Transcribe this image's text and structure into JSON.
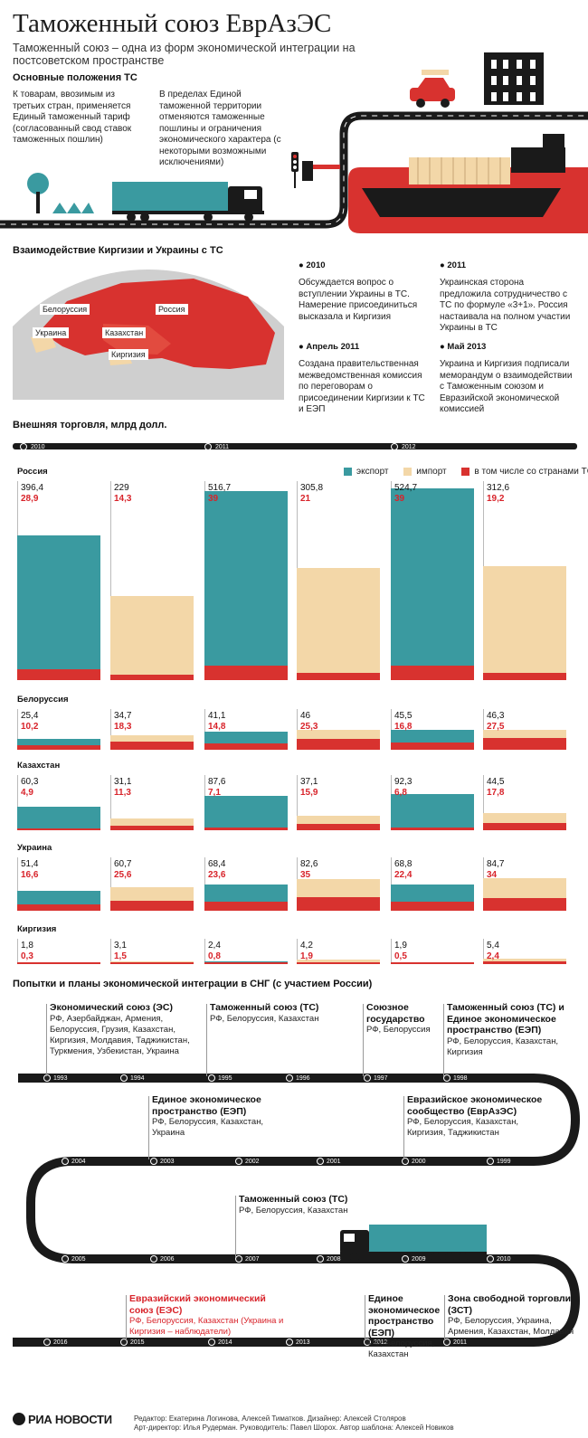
{
  "header": {
    "title": "Таможенный союз ЕврАзЭС",
    "subtitle": "Таможенный союз – одна из форм экономической интеграции на постсоветском пространстве"
  },
  "provisions": {
    "heading": "Основные положения ТС",
    "left": "К товарам, ввозимым из третьих стран, применяется Единый таможенный тариф (согласованный свод ставок таможенных пошлин)",
    "right": "В пределах Единой таможенной территории отменяются таможенные пошлины и ограничения экономического характера (с некоторыми возможными исключениями)"
  },
  "interaction": {
    "heading": "Взаимодействие Киргизии и Украины с ТС",
    "map_labels": [
      "Белоруссия",
      "Россия",
      "Украина",
      "Казахстан",
      "Киргизия"
    ],
    "events": [
      {
        "date": "2010",
        "text": "Обсуждается вопрос о вступлении Украины в ТС. Намерение присоединиться высказала и Киргизия"
      },
      {
        "date": "2011",
        "text": "Украинская сторона предложила сотрудничество с ТС по формуле «3+1». Россия настаивала на полном участии Украины в ТС"
      },
      {
        "date": "Апрель 2011",
        "text": "Создана правительственная межведомственная комиссия по переговорам о присоединении Киргизии к ТС и ЕЭП"
      },
      {
        "date": "Май 2013",
        "text": "Украина и Киргизия подписали меморандум о взаимодействии с Таможенным союзом и Евразийской экономической комиссией"
      }
    ]
  },
  "colors": {
    "export": "#3a9aa0",
    "import": "#f3d7a8",
    "ts": "#d8322f",
    "dark": "#1a1a1a"
  },
  "chart_data": {
    "type": "bar",
    "title": "Внешняя торговля, млрд долл.",
    "years": [
      "2010",
      "2011",
      "2012"
    ],
    "legend": [
      "экспорт",
      "импорт",
      "в том числе со странами ТС"
    ],
    "series_order": [
      "export",
      "import",
      "export",
      "import",
      "export",
      "import"
    ],
    "countries": [
      {
        "name": "Россия",
        "top": [
          "396,4",
          "229",
          "516,7",
          "305,8",
          "524,7",
          "312,6"
        ],
        "ts": [
          "28,9",
          "14,3",
          "39",
          "21",
          "39",
          "19,2"
        ],
        "v": [
          396.4,
          229,
          516.7,
          305.8,
          524.7,
          312.6
        ],
        "t": [
          28.9,
          14.3,
          39,
          21,
          39,
          19.2
        ]
      },
      {
        "name": "Белоруссия",
        "top": [
          "25,4",
          "34,7",
          "41,1",
          "46",
          "45,5",
          "46,3"
        ],
        "ts": [
          "10,2",
          "18,3",
          "14,8",
          "25,3",
          "16,8",
          "27,5"
        ],
        "v": [
          25.4,
          34.7,
          41.1,
          46,
          45.5,
          46.3
        ],
        "t": [
          10.2,
          18.3,
          14.8,
          25.3,
          16.8,
          27.5
        ]
      },
      {
        "name": "Казахстан",
        "top": [
          "60,3",
          "31,1",
          "87,6",
          "37,1",
          "92,3",
          "44,5"
        ],
        "ts": [
          "4,9",
          "11,3",
          "7,1",
          "15,9",
          "6,8",
          "17,8"
        ],
        "v": [
          60.3,
          31.1,
          87.6,
          37.1,
          92.3,
          44.5
        ],
        "t": [
          4.9,
          11.3,
          7.1,
          15.9,
          6.8,
          17.8
        ]
      },
      {
        "name": "Украина",
        "top": [
          "51,4",
          "60,7",
          "68,4",
          "82,6",
          "68,8",
          "84,7"
        ],
        "ts": [
          "16,6",
          "25,6",
          "23,6",
          "35",
          "22,4",
          "34"
        ],
        "v": [
          51.4,
          60.7,
          68.4,
          82.6,
          68.8,
          84.7
        ],
        "t": [
          16.6,
          25.6,
          23.6,
          35,
          22.4,
          34
        ]
      },
      {
        "name": "Киргизия",
        "top": [
          "1,8",
          "3,1",
          "2,4",
          "4,2",
          "1,9",
          "5,4"
        ],
        "ts": [
          "0,3",
          "1,5",
          "0,8",
          "1,9",
          "0,5",
          "2,4"
        ],
        "v": [
          1.8,
          3.1,
          2.4,
          4.2,
          1.9,
          5.4
        ],
        "t": [
          0.3,
          1.5,
          0.8,
          1.9,
          0.5,
          2.4
        ]
      }
    ]
  },
  "timeline": {
    "heading": "Попытки и планы экономической интеграции в СНГ (с участием России)",
    "row1_years": [
      "1993",
      "1994",
      "1995",
      "1996",
      "1997",
      "1998"
    ],
    "row2_years": [
      "2004",
      "2003",
      "2002",
      "2001",
      "2000",
      "1999"
    ],
    "row3_years": [
      "2005",
      "2006",
      "2007",
      "2008",
      "2009",
      "2010"
    ],
    "row4_years": [
      "2016",
      "2015",
      "2014",
      "2013",
      "2012",
      "2011"
    ],
    "items": [
      {
        "title": "Экономический союз (ЭС)",
        "text": "РФ, Азербайджан, Армения, Белоруссия, Грузия, Казахстан, Киргизия, Молдавия, Таджикистан, Туркмения, Узбекистан, Украина"
      },
      {
        "title": "Таможенный союз (ТС)",
        "text": "РФ, Белоруссия, Казахстан"
      },
      {
        "title": "Союзное государство",
        "text": "РФ, Белоруссия"
      },
      {
        "title": "Таможенный союз (ТС) и Единое экономическое пространство (ЕЭП)",
        "text": "РФ, Белоруссия, Казахстан, Киргизия"
      },
      {
        "title": "Единое экономическое пространство (ЕЭП)",
        "text": "РФ, Белоруссия, Казахстан, Украина"
      },
      {
        "title": "Евразийское экономическое сообщество (ЕврАзЭС)",
        "text": "РФ, Белоруссия, Казахстан, Киргизия, Таджикистан"
      },
      {
        "title": "Таможенный союз (ТС)",
        "text": "РФ, Белоруссия, Казахстан"
      },
      {
        "title": "Евразийский экономический союз (ЕЭС)",
        "text": "РФ, Белоруссия, Казахстан (Украина и Киргизия – наблюдатели)"
      },
      {
        "title": "Единое экономическое пространство (ЕЭП)",
        "text": "РФ, Белоруссия, Казахстан"
      },
      {
        "title": "Зона свободной торговли (ЗСТ)",
        "text": "РФ, Белоруссия, Украина, Армения, Казахстан, Молдавия"
      }
    ]
  },
  "footer": {
    "logo": "РИА НОВОСТИ",
    "credits1": "Редактор: Екатерина Логинова, Алексей Тиматков. Дизайнер: Алексей Столяров",
    "credits2": "Арт-директор: Илья Рудерман. Руководитель: Павел Шорох. Автор шаблона: Алексей Новиков"
  }
}
